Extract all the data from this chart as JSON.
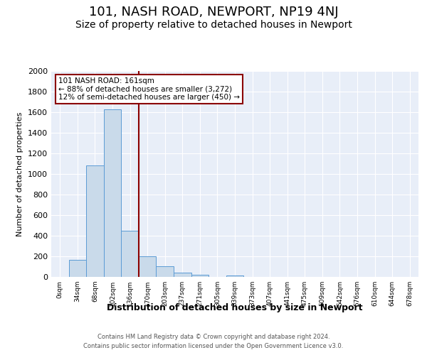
{
  "title": "101, NASH ROAD, NEWPORT, NP19 4NJ",
  "subtitle": "Size of property relative to detached houses in Newport",
  "xlabel": "Distribution of detached houses by size in Newport",
  "ylabel": "Number of detached properties",
  "bar_color": "#c9daea",
  "bar_edge_color": "#5b9bd5",
  "vline_color": "#8b0000",
  "vline_x": 4.5,
  "annotation_text": "101 NASH ROAD: 161sqm\n← 88% of detached houses are smaller (3,272)\n12% of semi-detached houses are larger (450) →",
  "annotation_box_color": "white",
  "annotation_box_edge": "#8b0000",
  "footer_line1": "Contains HM Land Registry data © Crown copyright and database right 2024.",
  "footer_line2": "Contains public sector information licensed under the Open Government Licence v3.0.",
  "categories": [
    "0sqm",
    "34sqm",
    "68sqm",
    "102sqm",
    "136sqm",
    "170sqm",
    "203sqm",
    "237sqm",
    "271sqm",
    "305sqm",
    "339sqm",
    "373sqm",
    "407sqm",
    "441sqm",
    "475sqm",
    "509sqm",
    "542sqm",
    "576sqm",
    "610sqm",
    "644sqm",
    "678sqm"
  ],
  "values": [
    0,
    165,
    1080,
    1630,
    450,
    200,
    105,
    42,
    18,
    0,
    12,
    0,
    0,
    0,
    0,
    0,
    0,
    0,
    0,
    0,
    0
  ],
  "ylim": [
    0,
    2000
  ],
  "yticks": [
    0,
    200,
    400,
    600,
    800,
    1000,
    1200,
    1400,
    1600,
    1800,
    2000
  ],
  "background_color": "#e8eef8",
  "title_fontsize": 13,
  "subtitle_fontsize": 10
}
